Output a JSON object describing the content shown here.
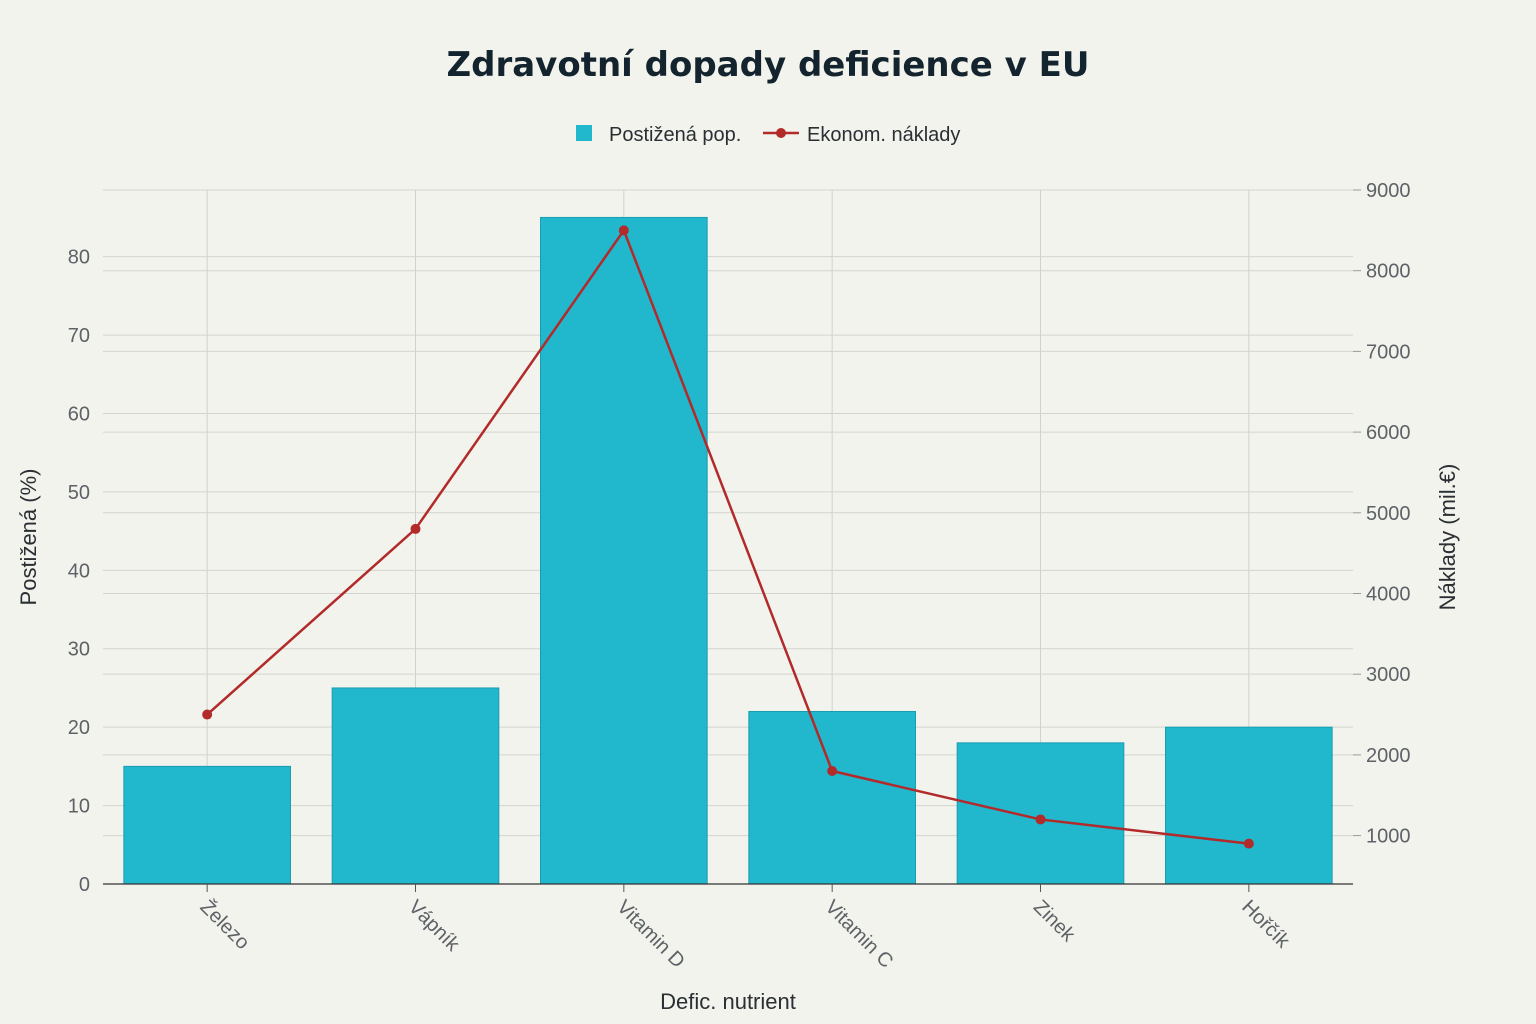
{
  "chart_data": {
    "type": "bar",
    "title": "Zdravotní dopady deficience v EU",
    "xlabel": "Defic. nutrient",
    "ylabel": "Postižená (%)",
    "y2label": "Náklady (mil.€)",
    "categories": [
      "Železo",
      "Vápník",
      "Vitamin D",
      "Vitamin C",
      "Zinek",
      "Hořčík"
    ],
    "series": [
      {
        "name": "Postižená pop.",
        "type": "bar",
        "axis": "left",
        "color": "#21b7cc",
        "values": [
          15,
          25,
          85,
          22,
          18,
          20
        ]
      },
      {
        "name": "Ekonom. náklady",
        "type": "line",
        "axis": "right",
        "color": "#b22a2a",
        "values": [
          2500,
          4800,
          8500,
          1800,
          1200,
          900
        ]
      }
    ],
    "ylim": [
      0,
      88.5
    ],
    "yticks": [
      0,
      10,
      20,
      30,
      40,
      50,
      60,
      70,
      80
    ],
    "y2lim": [
      400,
      9000
    ],
    "y2ticks": [
      1000,
      2000,
      3000,
      4000,
      5000,
      6000,
      7000,
      8000,
      9000
    ],
    "grid": true,
    "legend_position": "top-center"
  }
}
